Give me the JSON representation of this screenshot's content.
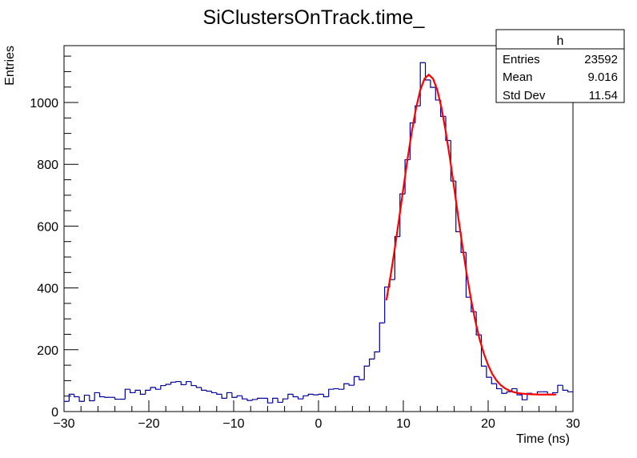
{
  "chart_data": {
    "type": "histogram",
    "title": "SiClustersOnTrack.time_",
    "xlabel": "Time (ns)",
    "ylabel": "Entries",
    "xlim": [
      -30,
      30
    ],
    "ylim": [
      0,
      1184
    ],
    "bin_width": 0.6,
    "x_ticks": [
      "-30",
      "-20",
      "-10",
      "0",
      "10",
      "20",
      "30"
    ],
    "x_tick_values": [
      -30,
      -20,
      -10,
      0,
      10,
      20,
      30
    ],
    "y_ticks": [
      "0",
      "200",
      "400",
      "600",
      "800",
      "1000"
    ],
    "y_tick_values": [
      0,
      200,
      400,
      600,
      800,
      1000
    ],
    "grid": false,
    "histogram_color": "#000099",
    "fit_color": "#ff0000",
    "values": [
      33,
      56,
      48,
      33,
      53,
      35,
      61,
      48,
      46,
      46,
      40,
      40,
      72,
      61,
      69,
      56,
      69,
      78,
      72,
      84,
      88,
      95,
      97,
      87,
      97,
      84,
      78,
      69,
      66,
      61,
      56,
      43,
      61,
      46,
      51,
      41,
      36,
      39,
      43,
      43,
      28,
      43,
      30,
      41,
      56,
      48,
      41,
      51,
      56,
      54,
      56,
      48,
      72,
      74,
      72,
      90,
      85,
      113,
      103,
      147,
      170,
      193,
      287,
      403,
      427,
      566,
      704,
      815,
      934,
      989,
      1129,
      1073,
      1049,
      1008,
      955,
      877,
      746,
      582,
      515,
      370,
      323,
      248,
      147,
      111,
      90,
      74,
      59,
      64,
      74,
      54,
      38,
      59,
      56,
      64,
      64,
      56,
      61,
      85,
      69,
      64
    ],
    "fit_curve": {
      "x": [
        8,
        8.5,
        9,
        9.5,
        10,
        10.5,
        11,
        11.5,
        12,
        12.5,
        13,
        13.5,
        14,
        14.5,
        15,
        15.5,
        16,
        16.5,
        17,
        17.5,
        18,
        18.5,
        19,
        19.5,
        20,
        20.5,
        21,
        21.5,
        22,
        22.5,
        23,
        23.5,
        24,
        24.5,
        25,
        26,
        27,
        28
      ],
      "y": [
        360,
        440,
        529,
        624,
        722,
        818,
        906,
        982,
        1041,
        1077,
        1090,
        1077,
        1041,
        982,
        906,
        818,
        722,
        624,
        529,
        440,
        360,
        291,
        233,
        187,
        150,
        121,
        100,
        85,
        75,
        68,
        63,
        60,
        58,
        57,
        56,
        55,
        55,
        55
      ]
    },
    "stats_box": {
      "title": "h",
      "rows": [
        {
          "label": "Entries",
          "value": "23592"
        },
        {
          "label": "Mean",
          "value": "9.016"
        },
        {
          "label": "Std Dev",
          "value": "11.54"
        }
      ],
      "placement": "top-right"
    }
  }
}
